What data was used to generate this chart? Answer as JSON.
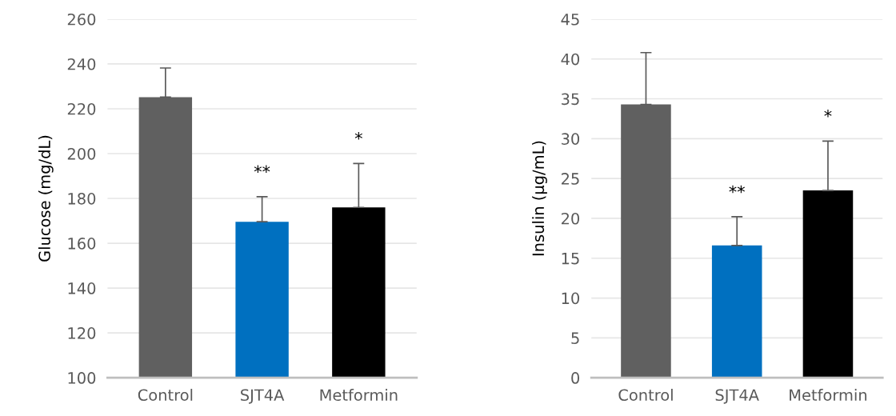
{
  "chart_data": [
    {
      "type": "bar",
      "ylabel": "Glucose (mg/dL)",
      "categories": [
        "Control",
        "SJT4A",
        "Metformin"
      ],
      "values": [
        225.2,
        169.6,
        176
      ],
      "colors": [
        "#606060",
        "#0070c0",
        "#000000"
      ],
      "errors": [
        [
          225.2,
          238.2
        ],
        [
          169.6,
          180.8
        ],
        [
          176,
          195.6
        ]
      ],
      "ylim": [
        100,
        260
      ],
      "yticks": [
        100,
        120,
        140,
        160,
        180,
        200,
        220,
        240,
        260
      ],
      "grid": "y",
      "legend": false,
      "annotations": [
        "**",
        "*"
      ]
    },
    {
      "type": "bar",
      "ylabel": "Insulin (µg/mL)",
      "categories": [
        "Control",
        "SJT4A",
        "Metformin"
      ],
      "values": [
        34.3,
        16.6,
        23.5
      ],
      "colors": [
        "#606060",
        "#0070c0",
        "#000000"
      ],
      "errors": [
        [
          34.3,
          40.8
        ],
        [
          16.6,
          20.2
        ],
        [
          23.5,
          29.7
        ]
      ],
      "ylim": [
        0,
        45
      ],
      "yticks": [
        0,
        5,
        10,
        15,
        20,
        25,
        30,
        35,
        40,
        45
      ],
      "grid": "y",
      "legend": false,
      "annotations": [
        "**",
        "*"
      ]
    }
  ]
}
